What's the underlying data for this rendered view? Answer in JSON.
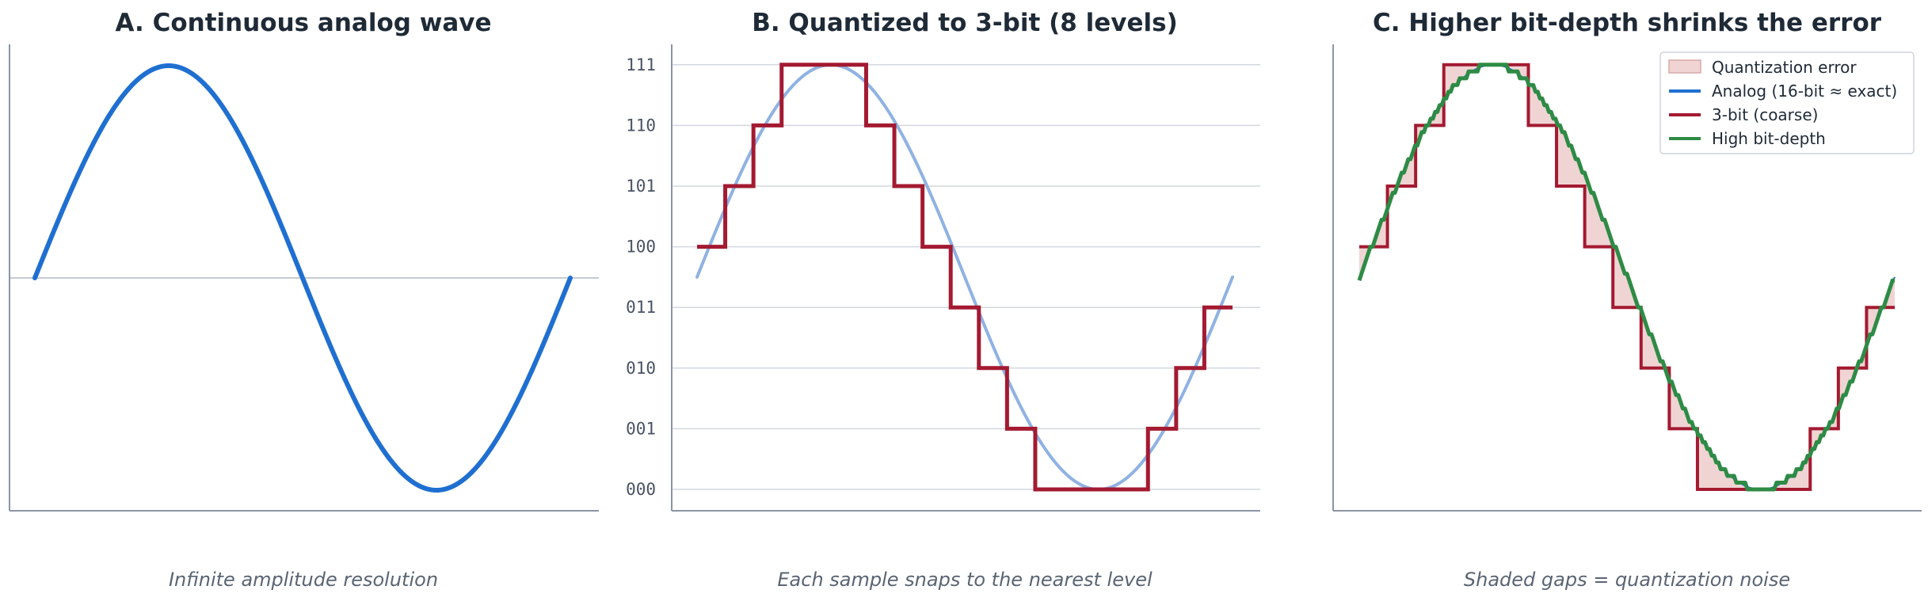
{
  "chart_data": [
    {
      "type": "line",
      "title": "A.  Continuous analog wave",
      "caption": "Infinite amplitude resolution",
      "x_range": [
        0,
        1
      ],
      "y_range": [
        -1,
        1
      ],
      "grid": false,
      "zero_line": true,
      "series": [
        {
          "function": "sine",
          "cycles": 1,
          "amplitude": 1,
          "color": "#1f6fd1"
        }
      ]
    },
    {
      "type": "line",
      "title": "B.  Quantized to 3-bit (8 levels)",
      "caption": "Each sample snaps to the nearest level",
      "x_range": [
        0,
        1
      ],
      "y_tick_labels": [
        "000",
        "001",
        "010",
        "011",
        "100",
        "101",
        "110",
        "111"
      ],
      "grid": true,
      "samples": 20,
      "series": [
        {
          "function": "sine",
          "color": "#8fb2e3"
        },
        {
          "quantized_levels": [
            4,
            5,
            6,
            7,
            7,
            7,
            6,
            5,
            4,
            3,
            2,
            1,
            0,
            0,
            0,
            0,
            1,
            2,
            3,
            3
          ],
          "color": "#a31a31"
        }
      ]
    },
    {
      "type": "line",
      "title": "C.  Higher bit-depth shrinks the error",
      "caption": "Shaded gaps = quantization noise",
      "x_range": [
        0,
        1
      ],
      "grid": false,
      "legend_position": "top-right",
      "legend": [
        {
          "label": "Quantization error",
          "kind": "patch",
          "color": "#f0d4d4"
        },
        {
          "label": "Analog (16-bit ≈ exact)",
          "kind": "line",
          "color": "#1f6fd1"
        },
        {
          "label": "3-bit (coarse)",
          "kind": "line",
          "color": "#a31a31"
        },
        {
          "label": "High bit-depth",
          "kind": "line",
          "color": "#2e8b45"
        }
      ],
      "series": [
        {
          "name": "Analog (16-bit ≈ exact)",
          "function": "sine",
          "color": "#1f6fd1"
        },
        {
          "name": "3-bit (coarse)",
          "quantized_levels": [
            4,
            5,
            6,
            7,
            7,
            7,
            6,
            5,
            4,
            3,
            2,
            1,
            0,
            0,
            0,
            0,
            1,
            2,
            3,
            3
          ],
          "color": "#a31a31"
        },
        {
          "name": "High bit-depth",
          "function": "sine",
          "step_levels": 64,
          "color": "#2e8b45"
        }
      ]
    }
  ]
}
